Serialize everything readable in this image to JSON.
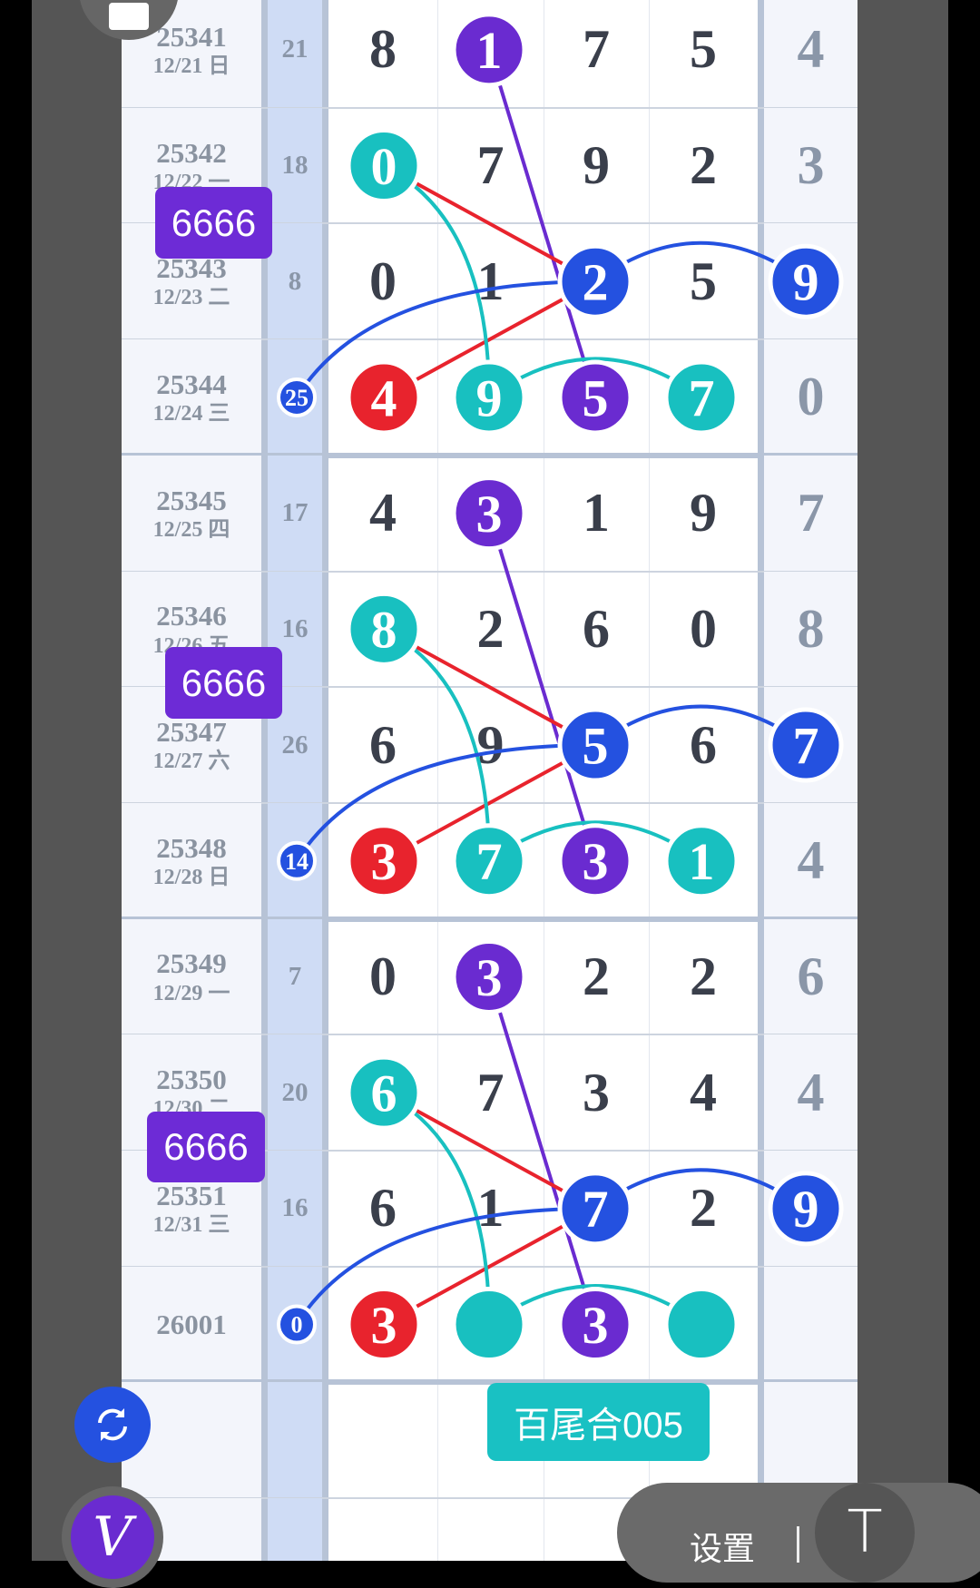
{
  "colors": {
    "teal": "#18c0c0",
    "purple": "#6a2bd0",
    "blue": "#2451e0",
    "red": "#e8232d"
  },
  "rows": [
    {
      "issue": "25341",
      "date": "12/21 日",
      "sum": "21",
      "digits": [
        "8",
        "1",
        "7",
        "5"
      ],
      "hl": [
        null,
        "purple",
        null,
        null
      ],
      "right": "4",
      "right_hl": null
    },
    {
      "issue": "25342",
      "date": "12/22 一",
      "sum": "18",
      "digits": [
        "0",
        "7",
        "9",
        "2"
      ],
      "hl": [
        "teal",
        null,
        null,
        null
      ],
      "right": "3",
      "right_hl": null
    },
    {
      "issue": "25343",
      "date": "12/23 二",
      "sum": "8",
      "digits": [
        "0",
        "1",
        "2",
        "5"
      ],
      "hl": [
        null,
        null,
        "blue",
        null
      ],
      "right": "9",
      "right_hl": "blue"
    },
    {
      "issue": "25344",
      "date": "12/24 三",
      "sum": "25",
      "sum_hl": "blue",
      "digits": [
        "4",
        "9",
        "5",
        "7"
      ],
      "hl": [
        "red",
        "teal",
        "purple",
        "teal"
      ],
      "right": "0",
      "right_hl": null
    },
    {
      "issue": "25345",
      "date": "12/25 四",
      "sum": "17",
      "digits": [
        "4",
        "3",
        "1",
        "9"
      ],
      "hl": [
        null,
        "purple",
        null,
        null
      ],
      "right": "7",
      "right_hl": null
    },
    {
      "issue": "25346",
      "date": "12/26 五",
      "sum": "16",
      "digits": [
        "8",
        "2",
        "6",
        "0"
      ],
      "hl": [
        "teal",
        null,
        null,
        null
      ],
      "right": "8",
      "right_hl": null
    },
    {
      "issue": "25347",
      "date": "12/27 六",
      "sum": "26",
      "digits": [
        "6",
        "9",
        "5",
        "6"
      ],
      "hl": [
        null,
        null,
        "blue",
        null
      ],
      "right": "7",
      "right_hl": "blue"
    },
    {
      "issue": "25348",
      "date": "12/28 日",
      "sum": "14",
      "sum_hl": "blue",
      "digits": [
        "3",
        "7",
        "3",
        "1"
      ],
      "hl": [
        "red",
        "teal",
        "purple",
        "teal"
      ],
      "right": "4",
      "right_hl": null
    },
    {
      "issue": "25349",
      "date": "12/29 一",
      "sum": "7",
      "digits": [
        "0",
        "3",
        "2",
        "2"
      ],
      "hl": [
        null,
        "purple",
        null,
        null
      ],
      "right": "6",
      "right_hl": null
    },
    {
      "issue": "25350",
      "date": "12/30 二",
      "sum": "20",
      "digits": [
        "6",
        "7",
        "3",
        "4"
      ],
      "hl": [
        "teal",
        null,
        null,
        null
      ],
      "right": "4",
      "right_hl": null
    },
    {
      "issue": "25351",
      "date": "12/31 三",
      "sum": "16",
      "digits": [
        "6",
        "1",
        "7",
        "2"
      ],
      "hl": [
        null,
        null,
        "blue",
        null
      ],
      "right": "9",
      "right_hl": "blue"
    },
    {
      "issue": "26001",
      "date": "",
      "sum": "0",
      "sum_hl": "blue",
      "digits": [
        "3",
        "",
        "3",
        ""
      ],
      "hl": [
        "red",
        "teal",
        "purple",
        "teal"
      ],
      "right": "",
      "right_hl": null
    },
    {
      "issue": "",
      "date": "",
      "sum": "",
      "digits": [
        "",
        "",
        "",
        ""
      ],
      "hl": [
        null,
        null,
        null,
        null
      ],
      "right": ""
    },
    {
      "issue": "",
      "date": "",
      "sum": "",
      "digits": [
        "",
        "",
        "",
        ""
      ],
      "hl": [
        null,
        null,
        null,
        null
      ],
      "right": ""
    }
  ],
  "link_groups_start_rows": [
    0,
    4,
    8
  ],
  "badges": [
    {
      "text": "6666"
    },
    {
      "text": "6666"
    },
    {
      "text": "6666"
    }
  ],
  "tail_badge": "百尾合005",
  "settings": {
    "label": "设置",
    "t_button": "T"
  },
  "fabs": {
    "refresh": "refresh-icon",
    "pen": "V"
  }
}
